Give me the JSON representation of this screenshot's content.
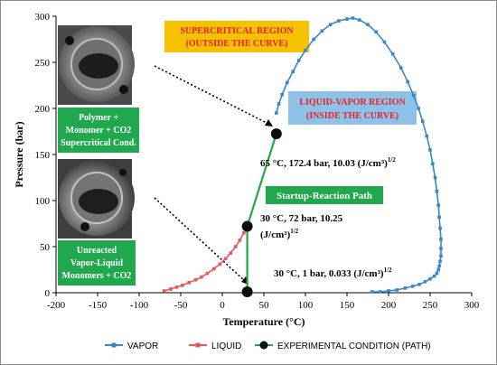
{
  "chart_data": {
    "type": "line",
    "title": "",
    "xlabel": "Temperature (°C)",
    "ylabel": "Pressure  (bar)",
    "xlim": [
      -200,
      300
    ],
    "ylim": [
      0,
      300
    ],
    "xticks": [
      "-200",
      "-150",
      "-100",
      "-50",
      "0",
      "50",
      "100",
      "150",
      "200",
      "250",
      "300"
    ],
    "yticks": [
      "0",
      "50",
      "100",
      "150",
      "200",
      "250",
      "300"
    ],
    "grid": false,
    "legend_position": "bottom",
    "colors": {
      "vapor": "#3a86c8",
      "liquid": "#e8575a",
      "path": "#22a845"
    },
    "series": [
      {
        "name": "VAPOR",
        "x": [
          65,
          68,
          72,
          78,
          85,
          92,
          100,
          110,
          120,
          130,
          140,
          150,
          157,
          165,
          175,
          185,
          195,
          205,
          215,
          223,
          230,
          236,
          241,
          246,
          250,
          253,
          256,
          258,
          260,
          261,
          262,
          263,
          263,
          263,
          262,
          261,
          260,
          258,
          255,
          250,
          244,
          237,
          229,
          220,
          210,
          200,
          190,
          180
        ],
        "y": [
          195,
          205,
          215,
          228,
          240,
          252,
          263,
          275,
          284,
          291,
          295,
          297,
          298,
          296,
          291,
          283,
          272,
          259,
          244,
          229,
          214,
          200,
          186,
          170,
          155,
          140,
          125,
          110,
          95,
          82,
          70,
          58,
          48,
          40,
          34,
          29,
          25,
          21,
          18,
          15,
          12,
          9,
          7,
          5,
          3,
          2,
          1,
          1
        ]
      },
      {
        "name": "LIQUID",
        "x": [
          -70,
          -62,
          -55,
          -48,
          -40,
          -32,
          -25,
          -18,
          -10,
          -3,
          4,
          10,
          16,
          21,
          26
        ],
        "y": [
          2,
          4,
          6,
          8,
          11,
          14,
          17,
          21,
          26,
          31,
          37,
          43,
          50,
          57,
          65
        ],
        "marker": "square"
      },
      {
        "name": "EXPERIMENTAL CONDITION (PATH)",
        "x": [
          30,
          30,
          65
        ],
        "y": [
          1,
          72,
          172.4
        ],
        "marker": "circle"
      }
    ],
    "annotations": {
      "supercritical_line1": "SUPERCRITICAL REGION",
      "supercritical_line2": "(OUTSIDE THE CURVE)",
      "lv_line1": "LIQUID-VAPOR REGION",
      "lv_line2": "(INSIDE THE CURVE)",
      "polymer_line1": "Polymer +",
      "polymer_line2": "Monomer + CO2",
      "polymer_line3": "Supercritical Cond.",
      "unreacted_line1": "Unreacted",
      "unreacted_line2": "Vapor-Liquid",
      "unreacted_line3": "Monomers + CO2",
      "startup_path": "Startup-Reaction Path",
      "pt_high": "65 °C, 172.4 bar, 10.03 (J/cm³)",
      "pt_mid_line1": "30 °C, 72 bar, 10.25",
      "pt_mid_line2": "(J/cm³)",
      "pt_low": "30 °C, 1 bar, 0.033 (J/cm³)",
      "exponent": "1/2"
    }
  }
}
